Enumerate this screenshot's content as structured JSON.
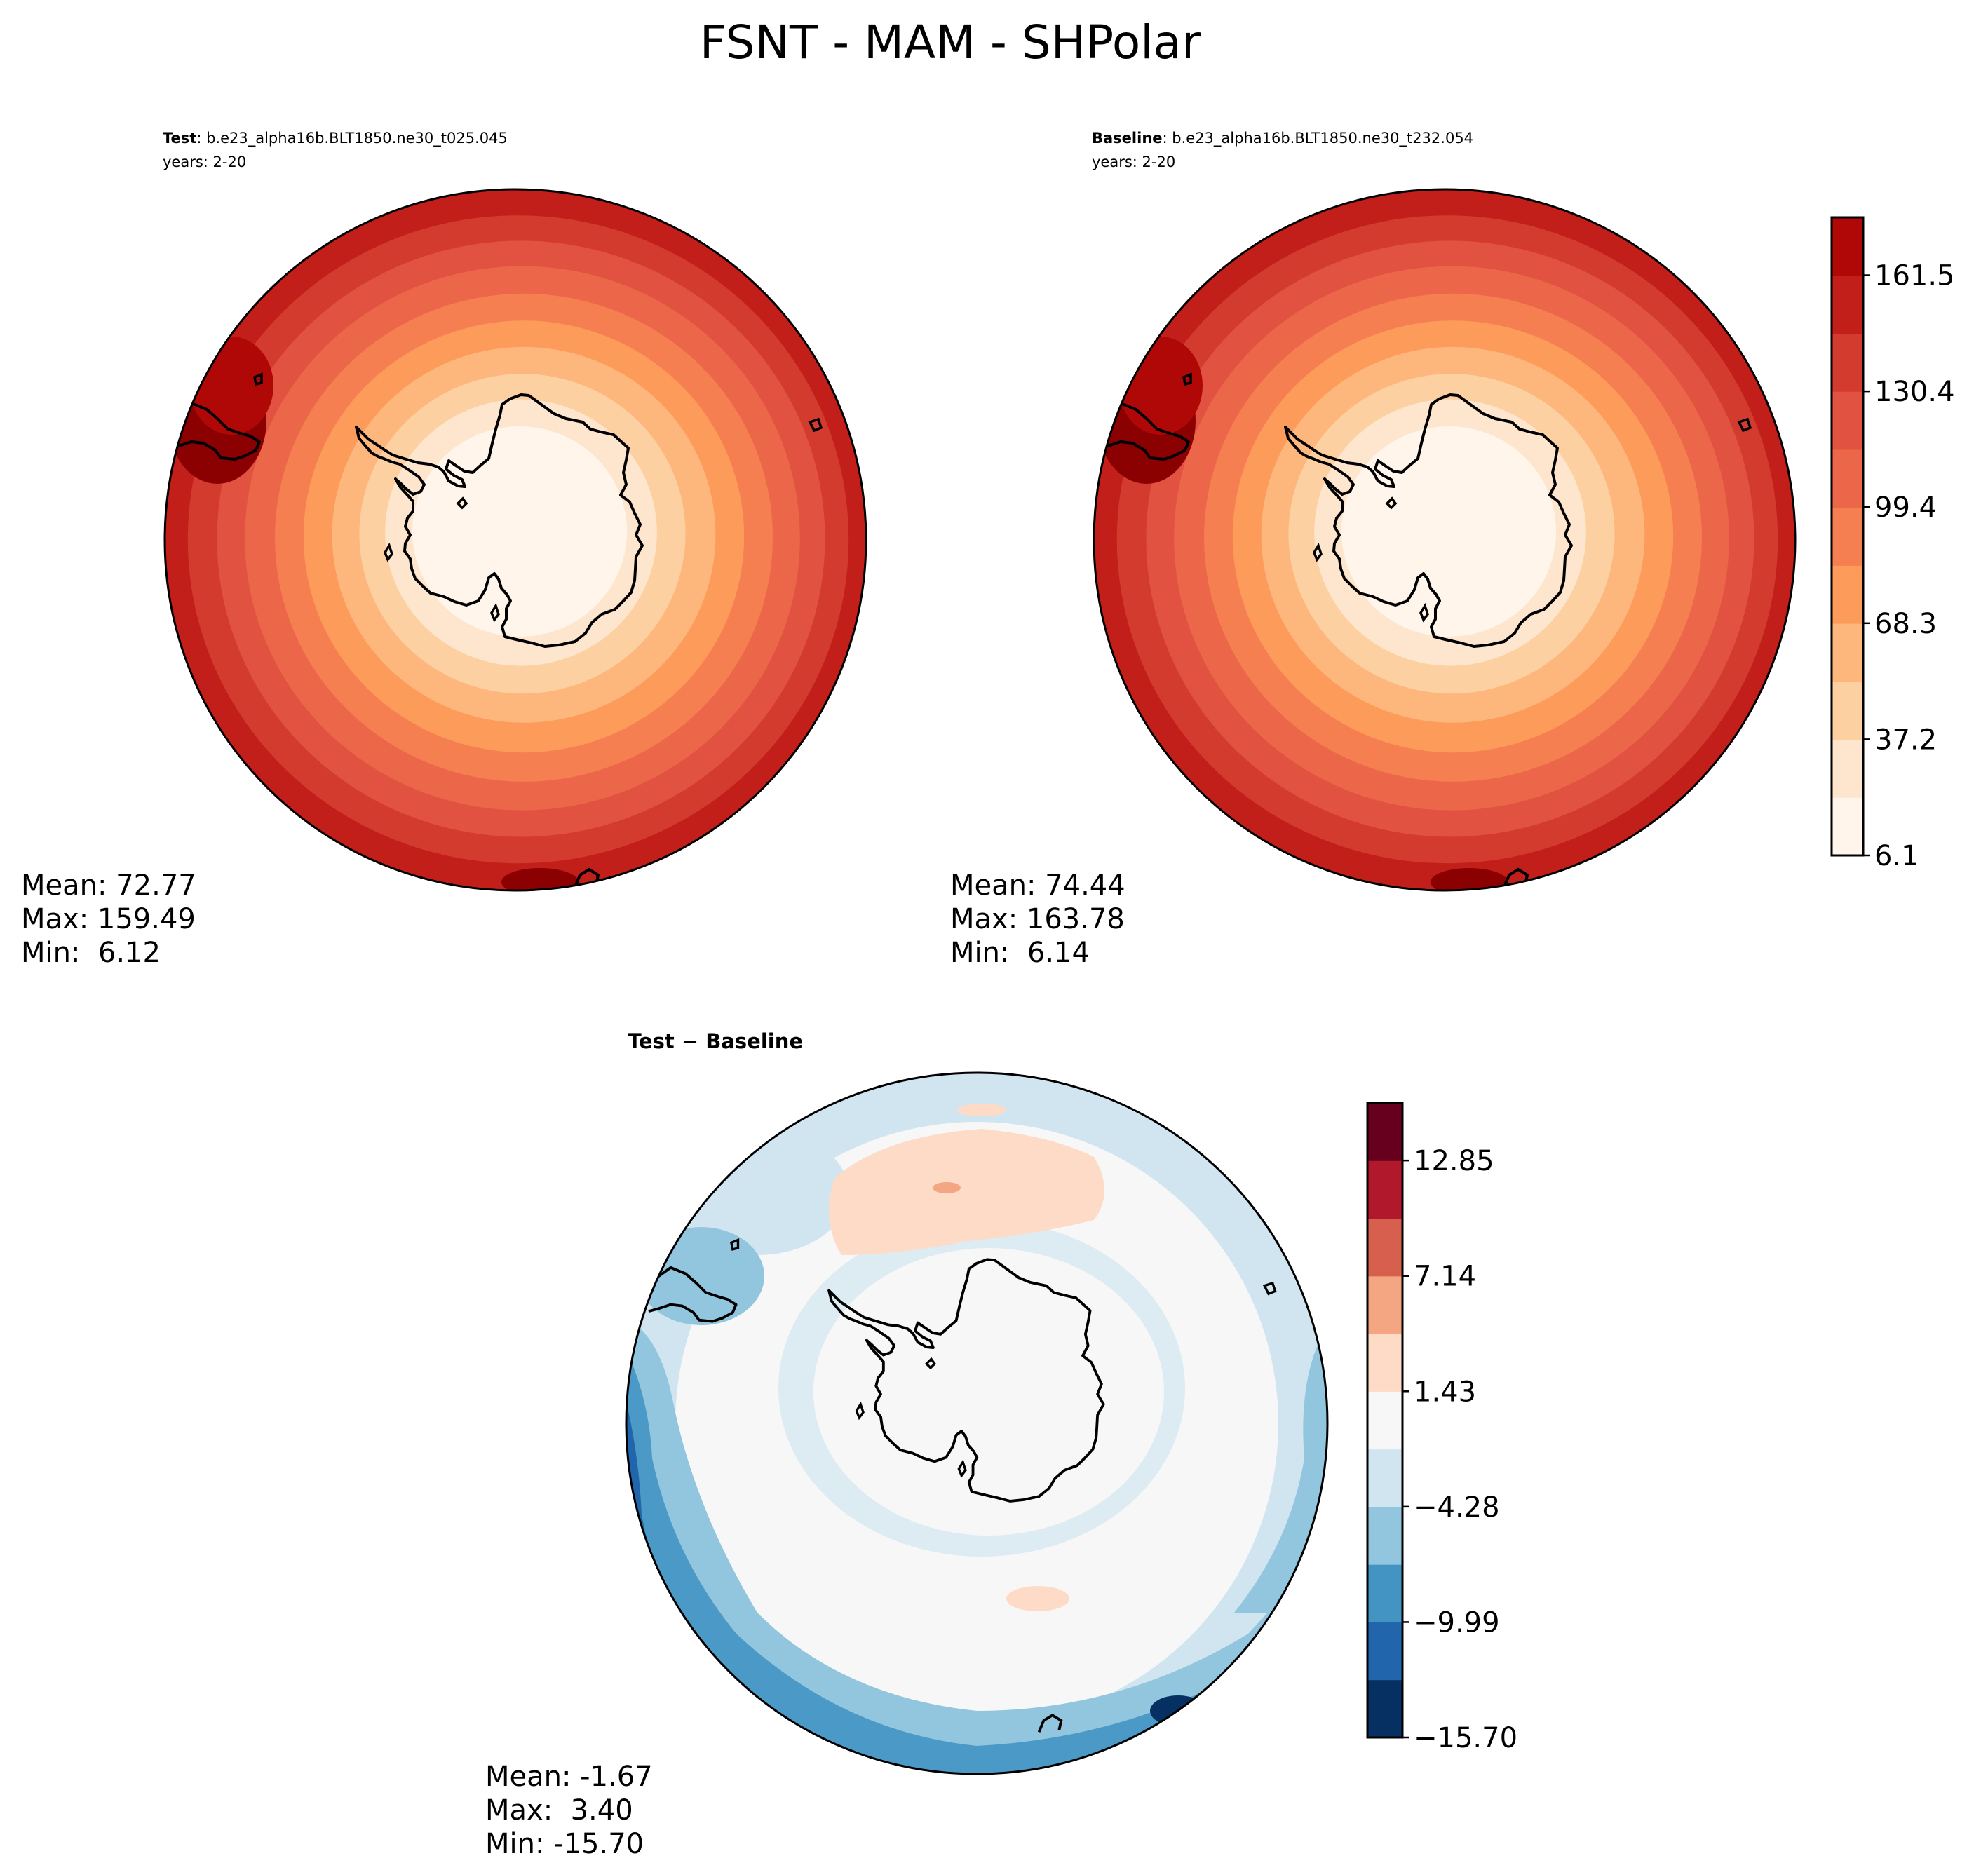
{
  "title": "FSNT - MAM - SHPolar",
  "colors": {
    "reds": [
      "#fff5eb",
      "#fee6ce",
      "#fdd0a2",
      "#fdb77d",
      "#fd9b5b",
      "#f67f52",
      "#ec6749",
      "#e15340",
      "#d33b2f",
      "#c21e1a",
      "#b00707",
      "#8b0000"
    ],
    "diff": [
      "#053061",
      "#2166ac",
      "#4393c3",
      "#92c5de",
      "#d1e5f0",
      "#f7f7f7",
      "#fddbc7",
      "#f4a582",
      "#d6604d",
      "#b2182b",
      "#67001f"
    ],
    "coast": "#000000"
  },
  "chart_data": [
    {
      "type": "heatmap",
      "panel": "test",
      "label_bold": "Test",
      "label_rest": ": b.e23_alpha16b.BLT1850.ne30_t025.045",
      "years": "years: 2-20",
      "stats": {
        "mean": "Mean: 72.77",
        "max": "Max: 159.49",
        "min": "Min:  6.12"
      },
      "ring_levels": [
        0,
        1,
        2,
        3,
        4,
        5,
        6,
        7,
        8,
        9
      ]
    },
    {
      "type": "heatmap",
      "panel": "baseline",
      "label_bold": "Baseline",
      "label_rest": ": b.e23_alpha16b.BLT1850.ne30_t232.054",
      "years": "years: 2-20",
      "stats": {
        "mean": "Mean: 74.44",
        "max": "Max: 163.78",
        "min": "Min:  6.14"
      },
      "ring_levels": [
        0,
        1,
        2,
        3,
        4,
        5,
        6,
        7,
        8,
        9
      ],
      "colorbar": {
        "levels": 11,
        "ticks": [
          6.1,
          37.2,
          68.3,
          99.4,
          130.4,
          161.5
        ],
        "tick_labels": [
          "6.1",
          "37.2",
          "68.3",
          "99.4",
          "130.4",
          "161.5"
        ],
        "range": [
          6.1,
          177.0
        ]
      }
    },
    {
      "type": "heatmap",
      "panel": "diff",
      "label": "Test − Baseline",
      "stats": {
        "mean": "Mean: -1.67",
        "max": "Max:  3.40",
        "min": "Min: -15.70"
      },
      "colorbar": {
        "levels": 11,
        "ticks": [
          -15.7,
          -9.99,
          -4.28,
          1.43,
          7.14,
          12.85
        ],
        "tick_labels": [
          "−15.70",
          "−9.99",
          "−4.28",
          "1.43",
          "7.14",
          "12.85"
        ],
        "range": [
          -15.7,
          15.7
        ]
      }
    }
  ]
}
